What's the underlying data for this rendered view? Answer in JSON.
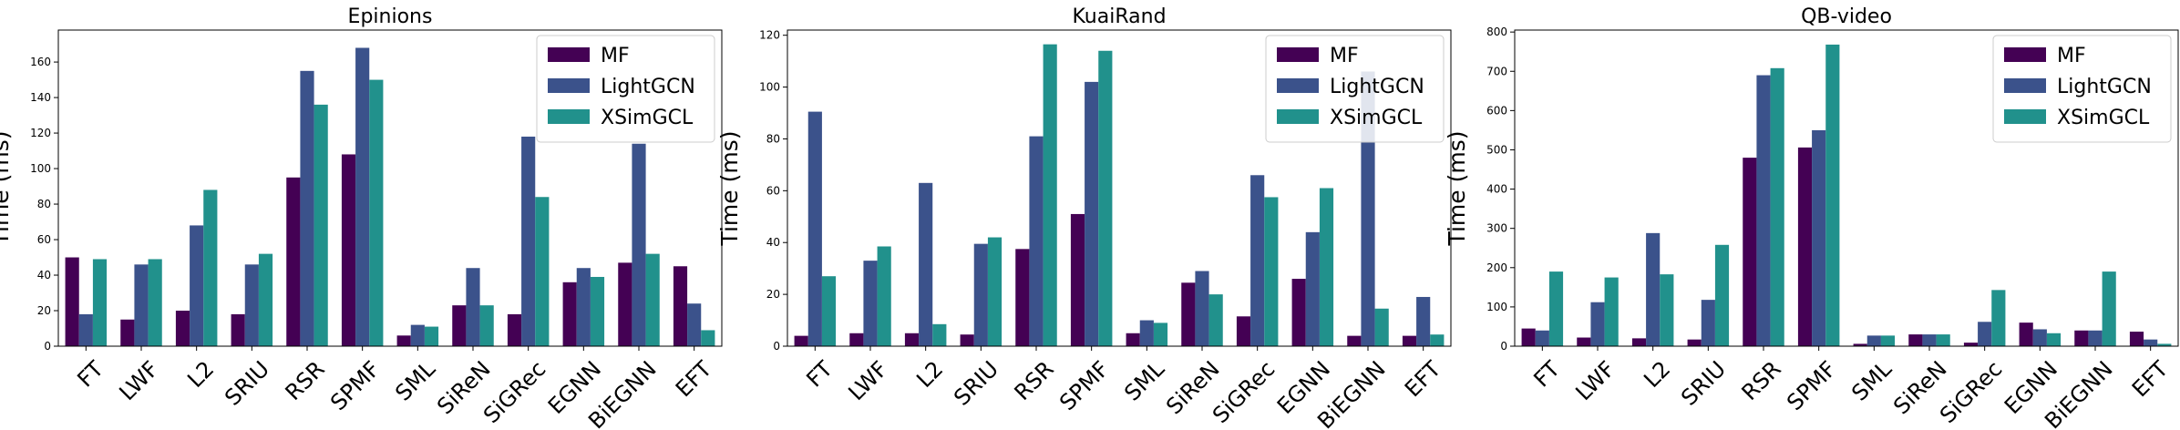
{
  "chart_data": [
    {
      "type": "bar",
      "title": "Epinions",
      "xlabel": "",
      "ylabel": "Time (ms)",
      "ylim": [
        0,
        178
      ],
      "yticks": [
        0,
        20,
        40,
        60,
        80,
        100,
        120,
        140,
        160
      ],
      "legend": "top-right",
      "grid": false,
      "categories": [
        "FT",
        "LWF",
        "L2",
        "SRIU",
        "RSR",
        "SPMF",
        "SML",
        "SiReN",
        "SiGRec",
        "EGNN",
        "BiEGNN",
        "EFT"
      ],
      "series": [
        {
          "name": "MF",
          "color": "#440154",
          "values": [
            50,
            15,
            20,
            18,
            95,
            108,
            6,
            23,
            18,
            36,
            47,
            45
          ]
        },
        {
          "name": "LightGCN",
          "color": "#3b528b",
          "values": [
            18,
            46,
            68,
            46,
            155,
            168,
            12,
            44,
            118,
            44,
            114,
            24
          ]
        },
        {
          "name": "XSimGCL",
          "color": "#21918c",
          "values": [
            49,
            49,
            88,
            52,
            136,
            150,
            11,
            23,
            84,
            39,
            52,
            9
          ]
        }
      ]
    },
    {
      "type": "bar",
      "title": "KuaiRand",
      "xlabel": "",
      "ylabel": "Time (ms)",
      "ylim": [
        0,
        122
      ],
      "yticks": [
        0,
        20,
        40,
        60,
        80,
        100,
        120
      ],
      "legend": "top-right",
      "grid": false,
      "categories": [
        "FT",
        "LWF",
        "L2",
        "SRIU",
        "RSR",
        "SPMF",
        "SML",
        "SiReN",
        "SiGRec",
        "EGNN",
        "BiEGNN",
        "EFT"
      ],
      "series": [
        {
          "name": "MF",
          "color": "#440154",
          "values": [
            4,
            5,
            5,
            4.5,
            37.5,
            51,
            5,
            24.5,
            11.5,
            26,
            4,
            4
          ]
        },
        {
          "name": "LightGCN",
          "color": "#3b528b",
          "values": [
            90.5,
            33,
            63,
            39.5,
            81,
            102,
            10,
            29,
            66,
            44,
            106,
            19
          ]
        },
        {
          "name": "XSimGCL",
          "color": "#21918c",
          "values": [
            27,
            38.5,
            8.5,
            42,
            116.5,
            114,
            9,
            20,
            57.5,
            61,
            14.5,
            4.5
          ]
        }
      ]
    },
    {
      "type": "bar",
      "title": "QB-video",
      "xlabel": "",
      "ylabel": "Time (ms)",
      "ylim": [
        0,
        805
      ],
      "yticks": [
        0,
        100,
        200,
        300,
        400,
        500,
        600,
        700,
        800
      ],
      "legend": "top-right",
      "grid": false,
      "categories": [
        "FT",
        "LWF",
        "L2",
        "SRIU",
        "RSR",
        "SPMF",
        "SML",
        "SiReN",
        "SiGRec",
        "EGNN",
        "BiEGNN",
        "EFT"
      ],
      "series": [
        {
          "name": "MF",
          "color": "#440154",
          "values": [
            45,
            22,
            20,
            17,
            480,
            506,
            6,
            30,
            9,
            60,
            40,
            37
          ]
        },
        {
          "name": "LightGCN",
          "color": "#3b528b",
          "values": [
            40,
            112,
            288,
            118,
            690,
            550,
            27,
            30,
            62,
            43,
            40,
            17
          ]
        },
        {
          "name": "XSimGCL",
          "color": "#21918c",
          "values": [
            190,
            175,
            183,
            258,
            708,
            768,
            27,
            30,
            143,
            33,
            190,
            6
          ]
        }
      ]
    }
  ]
}
